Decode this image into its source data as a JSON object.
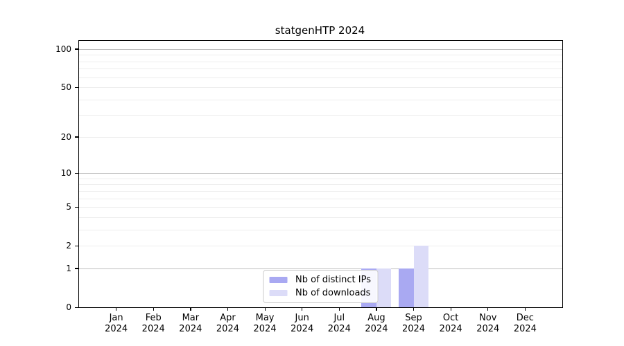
{
  "title": "statgenHTP 2024",
  "chart_data": {
    "type": "bar",
    "title": "statgenHTP 2024",
    "categories": [
      "Jan",
      "Feb",
      "Mar",
      "Apr",
      "May",
      "Jun",
      "Jul",
      "Aug",
      "Sep",
      "Oct",
      "Nov",
      "Dec"
    ],
    "category_year": "2024",
    "series": [
      {
        "name": "Nb of distinct IPs",
        "color": "#a9a9f2",
        "values": [
          0,
          0,
          0,
          0,
          0,
          0,
          0,
          1,
          1,
          0,
          0,
          0
        ]
      },
      {
        "name": "Nb of downloads",
        "color": "#dcdcf8",
        "values": [
          0,
          0,
          0,
          0,
          0,
          0,
          0,
          1,
          2,
          0,
          0,
          0
        ]
      }
    ],
    "xlabel": "",
    "ylabel": "",
    "yscale": "log1p",
    "ylim": [
      0,
      116
    ],
    "yticks": [
      0,
      1,
      2,
      5,
      10,
      20,
      50,
      100
    ],
    "gridlines_major": [
      1,
      10,
      100
    ],
    "gridlines_minor": [
      2,
      3,
      4,
      5,
      6,
      7,
      8,
      9,
      20,
      30,
      40,
      50,
      60,
      70,
      80,
      90
    ],
    "grid": "horizontal",
    "legend_position": "lower center"
  },
  "colors": {
    "background": "#ffffff",
    "spine": "#000000",
    "grid_major": "#bdbdbd",
    "grid_minor": "#ededed",
    "text": "#000000",
    "legend_border": "#cccccc"
  }
}
